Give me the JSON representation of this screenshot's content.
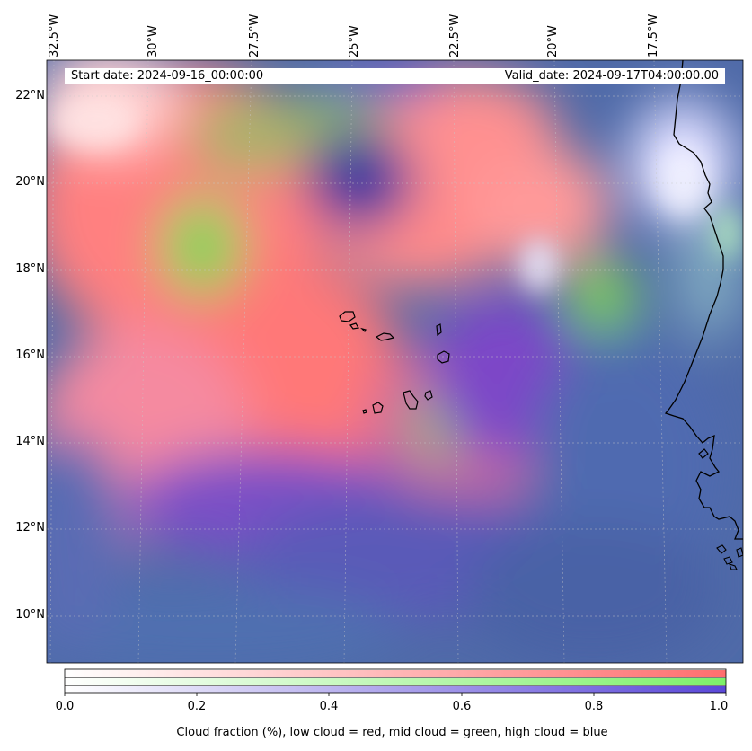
{
  "map": {
    "header": {
      "start_date": "Start date: 2024-09-16_00:00:00",
      "valid_date": "Valid_date: 2024-09-17T04:00:00.00"
    },
    "lon_labels": [
      "32.5°W",
      "30°W",
      "27.5°W",
      "25°W",
      "22.5°W",
      "20°W",
      "17.5°W"
    ],
    "lat_labels": [
      "22°N",
      "20°N",
      "18°N",
      "16°N",
      "14°N",
      "12°N",
      "10°N"
    ],
    "colors": {
      "low_cloud": "#ff7a7a",
      "mid_cloud": "#8ef07a",
      "high_cloud": "#6a5cd6",
      "ocean": "#4f6aa8",
      "coastline": "#000000"
    }
  },
  "colorbar": {
    "ticks": [
      "0.0",
      "0.2",
      "0.4",
      "0.6",
      "0.8",
      "1.0"
    ],
    "caption": "Cloud fraction (%), low cloud = red, mid cloud = green, high cloud = blue"
  }
}
